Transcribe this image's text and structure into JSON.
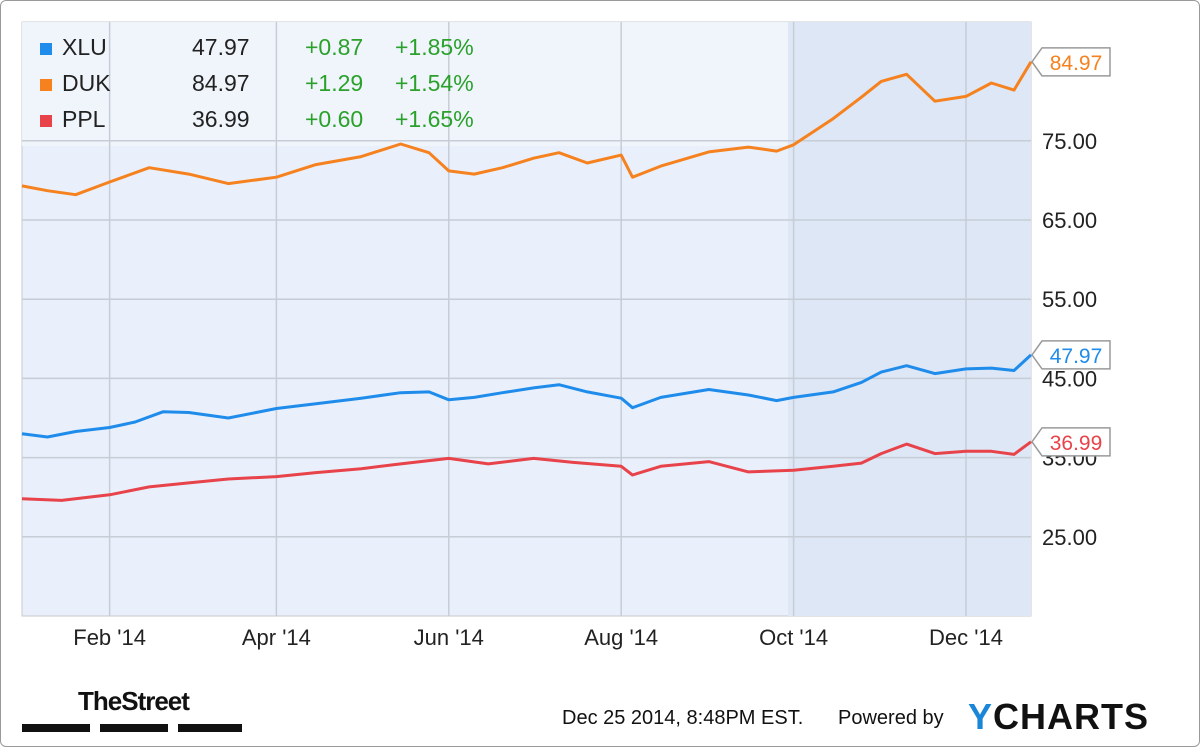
{
  "chart_data": {
    "type": "line",
    "title": "",
    "xlabel": "",
    "ylabel": "",
    "x_range": [
      "2014-01-01",
      "2014-12-24"
    ],
    "ylim": [
      15,
      90
    ],
    "y_ticks": [
      25,
      35,
      45,
      55,
      65,
      75
    ],
    "y_tick_labels": [
      "25.00",
      "35.00",
      "45.00",
      "55.00",
      "65.00",
      "75.00"
    ],
    "x_ticks": [
      "2014-02-01",
      "2014-04-01",
      "2014-06-01",
      "2014-08-01",
      "2014-10-01",
      "2014-12-01"
    ],
    "x_tick_labels": [
      "Feb '14",
      "Apr '14",
      "Jun '14",
      "Aug '14",
      "Oct '14",
      "Dec '14"
    ],
    "grid": true,
    "legend_position": "top-left",
    "series": [
      {
        "name": "XLU",
        "color": "#1f8ceb",
        "last": "47.97",
        "change": "+0.87",
        "change_pct": "+1.85%",
        "end_label": "47.97",
        "points": [
          [
            "2014-01-01",
            38.0
          ],
          [
            "2014-01-10",
            37.6
          ],
          [
            "2014-01-20",
            38.3
          ],
          [
            "2014-02-01",
            38.8
          ],
          [
            "2014-02-10",
            39.5
          ],
          [
            "2014-02-20",
            40.8
          ],
          [
            "2014-03-01",
            40.7
          ],
          [
            "2014-03-15",
            40.0
          ],
          [
            "2014-04-01",
            41.2
          ],
          [
            "2014-04-15",
            41.8
          ],
          [
            "2014-05-01",
            42.5
          ],
          [
            "2014-05-15",
            43.2
          ],
          [
            "2014-05-25",
            43.3
          ],
          [
            "2014-06-01",
            42.3
          ],
          [
            "2014-06-10",
            42.6
          ],
          [
            "2014-06-20",
            43.2
          ],
          [
            "2014-07-01",
            43.8
          ],
          [
            "2014-07-10",
            44.2
          ],
          [
            "2014-07-20",
            43.3
          ],
          [
            "2014-08-01",
            42.5
          ],
          [
            "2014-08-05",
            41.3
          ],
          [
            "2014-08-15",
            42.6
          ],
          [
            "2014-09-01",
            43.6
          ],
          [
            "2014-09-15",
            42.9
          ],
          [
            "2014-09-25",
            42.2
          ],
          [
            "2014-10-01",
            42.6
          ],
          [
            "2014-10-15",
            43.3
          ],
          [
            "2014-10-25",
            44.5
          ],
          [
            "2014-11-01",
            45.8
          ],
          [
            "2014-11-10",
            46.6
          ],
          [
            "2014-11-20",
            45.6
          ],
          [
            "2014-12-01",
            46.2
          ],
          [
            "2014-12-10",
            46.3
          ],
          [
            "2014-12-18",
            46.0
          ],
          [
            "2014-12-24",
            47.97
          ]
        ]
      },
      {
        "name": "DUK",
        "color": "#f5821f",
        "last": "84.97",
        "change": "+1.29",
        "change_pct": "+1.54%",
        "end_label": "84.97",
        "points": [
          [
            "2014-01-01",
            69.3
          ],
          [
            "2014-01-10",
            68.7
          ],
          [
            "2014-01-20",
            68.2
          ],
          [
            "2014-02-01",
            69.8
          ],
          [
            "2014-02-15",
            71.6
          ],
          [
            "2014-03-01",
            70.8
          ],
          [
            "2014-03-15",
            69.6
          ],
          [
            "2014-04-01",
            70.4
          ],
          [
            "2014-04-15",
            72.0
          ],
          [
            "2014-05-01",
            73.0
          ],
          [
            "2014-05-15",
            74.6
          ],
          [
            "2014-05-25",
            73.5
          ],
          [
            "2014-06-01",
            71.2
          ],
          [
            "2014-06-10",
            70.8
          ],
          [
            "2014-06-20",
            71.6
          ],
          [
            "2014-07-01",
            72.8
          ],
          [
            "2014-07-10",
            73.5
          ],
          [
            "2014-07-20",
            72.2
          ],
          [
            "2014-08-01",
            73.2
          ],
          [
            "2014-08-05",
            70.4
          ],
          [
            "2014-08-15",
            71.8
          ],
          [
            "2014-09-01",
            73.6
          ],
          [
            "2014-09-15",
            74.2
          ],
          [
            "2014-09-25",
            73.7
          ],
          [
            "2014-10-01",
            74.5
          ],
          [
            "2014-10-15",
            77.8
          ],
          [
            "2014-10-25",
            80.5
          ],
          [
            "2014-11-01",
            82.5
          ],
          [
            "2014-11-10",
            83.4
          ],
          [
            "2014-11-20",
            80.0
          ],
          [
            "2014-12-01",
            80.6
          ],
          [
            "2014-12-10",
            82.3
          ],
          [
            "2014-12-18",
            81.4
          ],
          [
            "2014-12-24",
            84.97
          ]
        ]
      },
      {
        "name": "PPL",
        "color": "#e8434a",
        "last": "36.99",
        "change": "+0.60",
        "change_pct": "+1.65%",
        "end_label": "36.99",
        "points": [
          [
            "2014-01-01",
            29.8
          ],
          [
            "2014-01-15",
            29.6
          ],
          [
            "2014-02-01",
            30.3
          ],
          [
            "2014-02-15",
            31.3
          ],
          [
            "2014-03-01",
            31.8
          ],
          [
            "2014-03-15",
            32.3
          ],
          [
            "2014-04-01",
            32.6
          ],
          [
            "2014-04-15",
            33.1
          ],
          [
            "2014-05-01",
            33.6
          ],
          [
            "2014-05-15",
            34.2
          ],
          [
            "2014-06-01",
            34.9
          ],
          [
            "2014-06-15",
            34.2
          ],
          [
            "2014-07-01",
            34.9
          ],
          [
            "2014-07-15",
            34.4
          ],
          [
            "2014-08-01",
            33.9
          ],
          [
            "2014-08-05",
            32.8
          ],
          [
            "2014-08-15",
            33.9
          ],
          [
            "2014-09-01",
            34.5
          ],
          [
            "2014-09-15",
            33.2
          ],
          [
            "2014-10-01",
            33.4
          ],
          [
            "2014-10-15",
            33.9
          ],
          [
            "2014-10-25",
            34.3
          ],
          [
            "2014-11-01",
            35.5
          ],
          [
            "2014-11-10",
            36.7
          ],
          [
            "2014-11-20",
            35.5
          ],
          [
            "2014-12-01",
            35.8
          ],
          [
            "2014-12-10",
            35.8
          ],
          [
            "2014-12-18",
            35.4
          ],
          [
            "2014-12-24",
            36.99
          ]
        ]
      }
    ]
  },
  "footer": {
    "source_logo": "TheStreet",
    "timestamp": "Dec 25 2014, 8:48PM EST.",
    "powered_by": "Powered by",
    "brand_accent": "Y",
    "brand_rest": "CHARTS"
  }
}
